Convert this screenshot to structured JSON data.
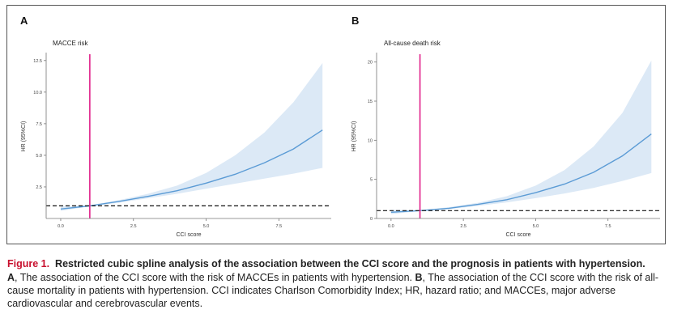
{
  "figure": {
    "label": "Figure 1.",
    "title": "Restricted cubic spline analysis of the association between the CCI score and the prognosis in patients with hypertension.",
    "body_a_letter": "A",
    "body_a_text": ", The association of the CCI score with the risk of MACCEs in patients with hypertension. ",
    "body_b_letter": "B",
    "body_b_text": ", The association of the CCI score with the risk of all-cause mortality in patients with hypertension. CCI indicates Charlson Comorbidity Index; HR, hazard ratio; and MACCEs, major adverse cardiovascular and cerebrovascular events."
  },
  "colors": {
    "line": "#5b9bd5",
    "band": "#dce9f6",
    "cutoff": "#e0218a",
    "reference": "#111111"
  },
  "chart_data": [
    {
      "type": "line",
      "panel": "A",
      "title": "MACCE risk",
      "xlabel": "CCI score",
      "ylabel": "HR (95%CI)",
      "xlim": [
        -0.5,
        9.3
      ],
      "ylim": [
        0,
        13
      ],
      "xticks": [
        0,
        2.5,
        5,
        7.5
      ],
      "xtick_labels": [
        "0.0",
        "2.5",
        "5.0",
        "7.5"
      ],
      "yticks": [
        2.5,
        5,
        7.5,
        10,
        12.5
      ],
      "ytick_labels": [
        "2.5",
        "5.0",
        "7.5",
        "10.0",
        "12.5"
      ],
      "x": [
        0,
        1,
        2,
        3,
        4,
        5,
        6,
        7,
        8,
        9
      ],
      "hr": [
        0.75,
        1.0,
        1.35,
        1.75,
        2.2,
        2.8,
        3.5,
        4.4,
        5.5,
        7.0
      ],
      "ci_lower": [
        0.6,
        0.95,
        1.25,
        1.6,
        1.95,
        2.35,
        2.75,
        3.15,
        3.55,
        4.0
      ],
      "ci_upper": [
        0.95,
        1.05,
        1.45,
        1.95,
        2.6,
        3.6,
        5.0,
        6.8,
        9.2,
        12.3
      ],
      "cutoff_x": 1,
      "reference_hr": 1,
      "grid": false
    },
    {
      "type": "line",
      "panel": "B",
      "title": "All-cause death risk",
      "xlabel": "CCI score",
      "ylabel": "HR (95%CI)",
      "xlim": [
        -0.5,
        9.3
      ],
      "ylim": [
        0,
        21
      ],
      "xticks": [
        0,
        2.5,
        5,
        7.5
      ],
      "xtick_labels": [
        "0.0",
        "2.5",
        "5.0",
        "7.5"
      ],
      "yticks": [
        0,
        5,
        10,
        15,
        20
      ],
      "ytick_labels": [
        "0",
        "5",
        "10",
        "15",
        "20"
      ],
      "x": [
        0,
        1,
        2,
        3,
        4,
        5,
        6,
        7,
        8,
        9
      ],
      "hr": [
        0.8,
        1.0,
        1.3,
        1.8,
        2.4,
        3.3,
        4.4,
        5.9,
        8.0,
        10.8
      ],
      "ci_lower": [
        0.55,
        0.95,
        1.2,
        1.6,
        2.05,
        2.6,
        3.2,
        3.9,
        4.8,
        5.8
      ],
      "ci_upper": [
        1.1,
        1.05,
        1.45,
        2.0,
        2.85,
        4.2,
        6.2,
        9.2,
        13.5,
        20.2
      ],
      "cutoff_x": 1,
      "reference_hr": 1,
      "grid": false
    }
  ]
}
